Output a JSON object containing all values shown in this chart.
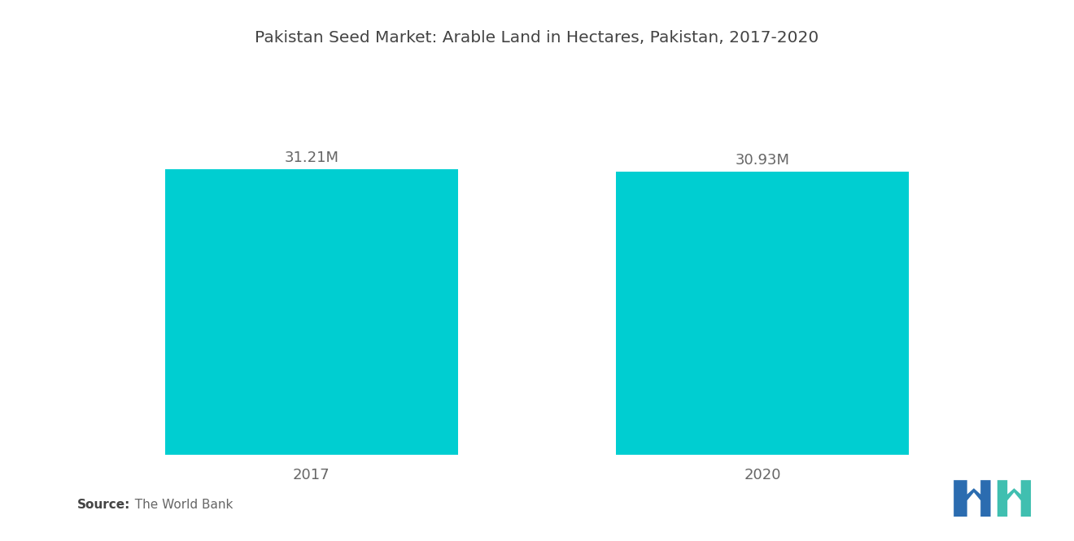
{
  "title": "Pakistan Seed Market: Arable Land in Hectares, Pakistan, 2017-2020",
  "categories": [
    "2017",
    "2020"
  ],
  "values": [
    31.21,
    30.93
  ],
  "labels": [
    "31.21M",
    "30.93M"
  ],
  "bar_color": "#00CED1",
  "background_color": "#ffffff",
  "title_fontsize": 14.5,
  "label_fontsize": 13,
  "tick_fontsize": 13,
  "source_bold": "Source:",
  "source_detail": "  The World Bank",
  "ylim_max": 42,
  "bar_positions": [
    1.0,
    3.0
  ],
  "bar_width": 1.3,
  "xlim": [
    0,
    4
  ],
  "logo_blue": "#2B6CB0",
  "logo_teal": "#40BFB0"
}
